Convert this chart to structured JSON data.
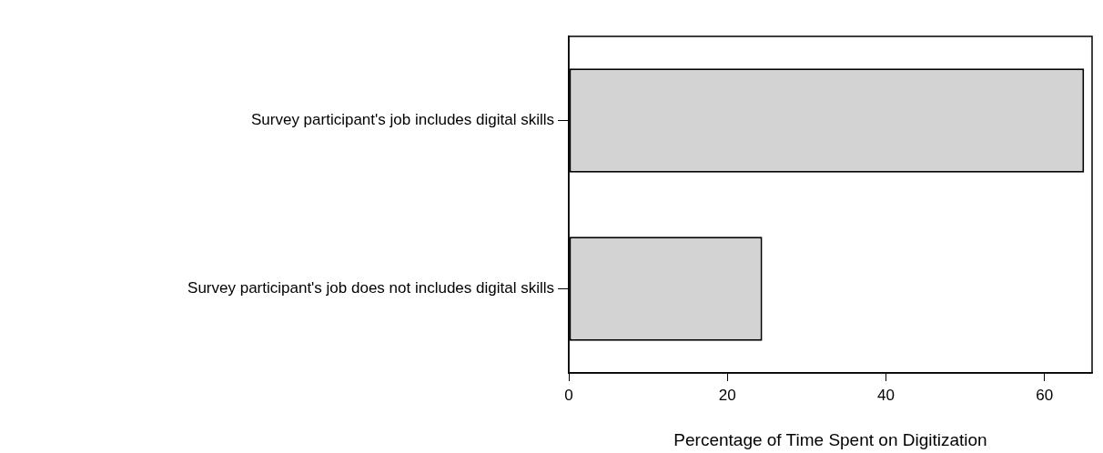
{
  "chart_data": {
    "type": "bar",
    "orientation": "horizontal",
    "categories": [
      "Survey participant's job includes digital skills",
      "Survey participant's job does not includes digital skills"
    ],
    "values": [
      65,
      24.4
    ],
    "color": "#d3d3d3",
    "xlabel": "Percentage of Time Spent on Digitization",
    "xlim": [
      0,
      66
    ],
    "xticks": [
      0,
      20,
      40,
      60
    ],
    "grid": false,
    "legend": false
  }
}
